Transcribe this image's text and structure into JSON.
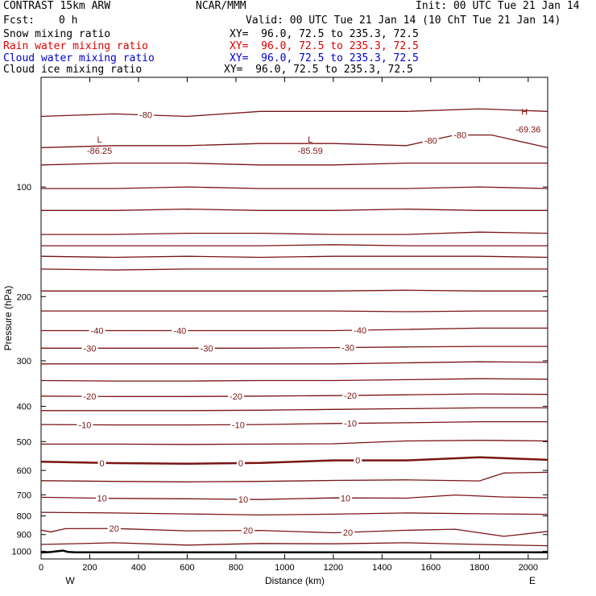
{
  "header": {
    "model": "CONTRAST 15km ARW",
    "center": "NCAR/MMM",
    "init": "Init: 00 UTC Tue 21 Jan 14",
    "fcst_label": "Fcst:",
    "fcst_value": "0 h",
    "valid": "Valid: 00 UTC Tue 21 Jan 14 (10 ChT Tue 21 Jan 14)"
  },
  "fields": [
    {
      "name": "Snow mixing ratio",
      "xy": "XY=  96.0, 72.5 to 235.3, 72.5",
      "color": "#000000"
    },
    {
      "name": "Rain water mixing ratio",
      "xy": "XY=  96.0, 72.5 to 235.3, 72.5",
      "color": "#e00000"
    },
    {
      "name": "Cloud water mixing ratio",
      "xy": "XY=  96.0, 72.5 to 235.3, 72.5",
      "color": "#0000c8"
    },
    {
      "name": "Cloud ice mixing ratio",
      "xy": "XY=  96.0, 72.5 to 235.3, 72.5",
      "color": "#000000"
    }
  ],
  "chart_data": {
    "type": "line",
    "xlabel": "Distance (km)",
    "ylabel": "Pressure (hPa)",
    "xlim": [
      0,
      2080
    ],
    "ylim": [
      1050,
      50
    ],
    "y_scale": "log",
    "x_ticks": [
      "0",
      "200",
      "400",
      "600",
      "800",
      "1000",
      "1200",
      "1400",
      "1600",
      "1800",
      "2000"
    ],
    "y_ticks": [
      "100",
      "200",
      "300",
      "400",
      "500",
      "600",
      "700",
      "800",
      "900",
      "1000"
    ],
    "x_end_labels": {
      "left": "W",
      "right": "E"
    },
    "contour_color": "#7a1414",
    "surface_color": "#000000",
    "max_label": "H",
    "min_label": "L",
    "extrema_values": [
      "-86.25",
      "-85.59",
      "-69.36"
    ],
    "contour_labels": [
      "-80",
      "-80",
      "-80",
      "-40",
      "-40",
      "-40",
      "-30",
      "-30",
      "-30",
      "-20",
      "-20",
      "-20",
      "-10",
      "-10",
      "-10",
      "0",
      "0",
      "0",
      "10",
      "10",
      "10",
      "20",
      "20",
      "20"
    ],
    "surface_pressure": {
      "x": [
        0,
        40,
        60,
        90,
        110,
        140,
        2080
      ],
      "p": [
        1008,
        1005,
        1001,
        996,
        1004,
        1007,
        1007
      ]
    },
    "isotherms": [
      {
        "x": [
          0,
          300,
          600,
          900,
          1200,
          1500,
          1800,
          2080
        ],
        "p": [
          64,
          63,
          64,
          62,
          62,
          62,
          61,
          62
        ]
      },
      {
        "x": [
          0,
          300,
          600,
          900,
          1200,
          1500,
          1700,
          1850,
          2080
        ],
        "p": [
          78,
          77,
          77,
          76,
          76,
          77,
          72,
          72,
          78
        ]
      },
      {
        "x": [
          0,
          300,
          600,
          900,
          1200,
          1500,
          1800,
          2080
        ],
        "p": [
          87,
          86,
          86,
          87,
          87,
          86,
          86,
          86
        ]
      },
      {
        "x": [
          0,
          300,
          600,
          900,
          1200,
          1500,
          1800,
          2080
        ],
        "p": [
          101,
          101,
          100,
          101,
          101,
          101,
          100,
          101
        ]
      },
      {
        "x": [
          0,
          300,
          600,
          900,
          1200,
          1500,
          1800,
          2080
        ],
        "p": [
          116,
          116,
          115,
          116,
          116,
          115,
          116,
          116
        ]
      },
      {
        "x": [
          0,
          300,
          600,
          900,
          1200,
          1500,
          1800,
          2080
        ],
        "p": [
          135,
          135,
          134,
          134,
          135,
          135,
          133,
          134
        ]
      },
      {
        "x": [
          0,
          300,
          600,
          900,
          1200,
          1500,
          1800,
          2080
        ],
        "p": [
          145,
          145,
          145,
          145,
          144,
          145,
          145,
          145
        ]
      },
      {
        "x": [
          0,
          300,
          600,
          900,
          1200,
          1500,
          1800,
          2080
        ],
        "p": [
          155,
          156,
          155,
          156,
          155,
          155,
          155,
          156
        ]
      },
      {
        "x": [
          0,
          300,
          600,
          900,
          1200,
          1500,
          1800,
          2080
        ],
        "p": [
          168,
          169,
          168,
          168,
          168,
          168,
          168,
          168
        ]
      },
      {
        "x": [
          0,
          300,
          600,
          900,
          1200,
          1500,
          1800,
          2080
        ],
        "p": [
          193,
          193,
          193,
          193,
          193,
          192,
          193,
          193
        ]
      },
      {
        "x": [
          0,
          300,
          600,
          900,
          1200,
          1500,
          1800,
          2080
        ],
        "p": [
          219,
          219,
          219,
          219,
          219,
          220,
          219,
          219
        ]
      },
      {
        "x": [
          0,
          300,
          600,
          900,
          1200,
          1500,
          1800,
          2080
        ],
        "p": [
          248,
          248,
          248,
          248,
          248,
          246,
          244,
          244
        ]
      },
      {
        "x": [
          0,
          300,
          600,
          900,
          1200,
          1500,
          1800,
          2080
        ],
        "p": [
          277,
          277,
          277,
          277,
          276,
          275,
          274,
          274
        ]
      },
      {
        "x": [
          0,
          300,
          600,
          900,
          1200,
          1500,
          1800,
          2080
        ],
        "p": [
          306,
          306,
          306,
          306,
          306,
          304,
          302,
          303
        ]
      },
      {
        "x": [
          0,
          300,
          600,
          900,
          1200,
          1500,
          1800,
          2080
        ],
        "p": [
          340,
          341,
          341,
          340,
          340,
          338,
          336,
          337
        ]
      },
      {
        "x": [
          0,
          300,
          600,
          900,
          1200,
          1500,
          1800,
          2080
        ],
        "p": [
          375,
          376,
          376,
          375,
          374,
          372,
          370,
          371
        ]
      },
      {
        "x": [
          0,
          300,
          600,
          900,
          1200,
          1500,
          1800,
          2080
        ],
        "p": [
          411,
          411,
          411,
          410,
          408,
          406,
          404,
          404
        ]
      },
      {
        "x": [
          0,
          300,
          600,
          900,
          1200,
          1500,
          1800,
          2080
        ],
        "p": [
          449,
          450,
          450,
          449,
          446,
          444,
          441,
          441
        ]
      },
      {
        "x": [
          0,
          300,
          600,
          900,
          1200,
          1500,
          1800,
          2080
        ],
        "p": [
          508,
          508,
          509,
          508,
          507,
          498,
          496,
          498
        ]
      },
      {
        "x": [
          0,
          300,
          600,
          900,
          1200,
          1500,
          1800,
          2080
        ],
        "p": [
          568,
          573,
          575,
          572,
          563,
          563,
          552,
          561
        ]
      },
      {
        "x": [
          0,
          300,
          600,
          900,
          1200,
          1500,
          1800,
          1900,
          2080
        ],
        "p": [
          640,
          643,
          645,
          643,
          639,
          637,
          641,
          610,
          607
        ]
      },
      {
        "x": [
          0,
          300,
          600,
          900,
          1200,
          1500,
          1700,
          1900,
          2080
        ],
        "p": [
          711,
          716,
          718,
          721,
          714,
          715,
          701,
          710,
          713
        ]
      },
      {
        "x": [
          0,
          300,
          600,
          900,
          1200,
          1500,
          1800,
          2080
        ],
        "p": [
          782,
          785,
          790,
          795,
          791,
          785,
          789,
          792
        ]
      },
      {
        "x": [
          0,
          40,
          100,
          300,
          600,
          900,
          1200,
          1500,
          1700,
          1800,
          1900,
          2080
        ],
        "p": [
          875,
          885,
          867,
          866,
          879,
          877,
          890,
          876,
          870,
          890,
          910,
          882
        ]
      },
      {
        "x": [
          0,
          300,
          600,
          900,
          1200,
          1500,
          1800,
          2080
        ],
        "p": [
          958,
          948,
          962,
          952,
          954,
          948,
          958,
          966
        ]
      }
    ]
  }
}
